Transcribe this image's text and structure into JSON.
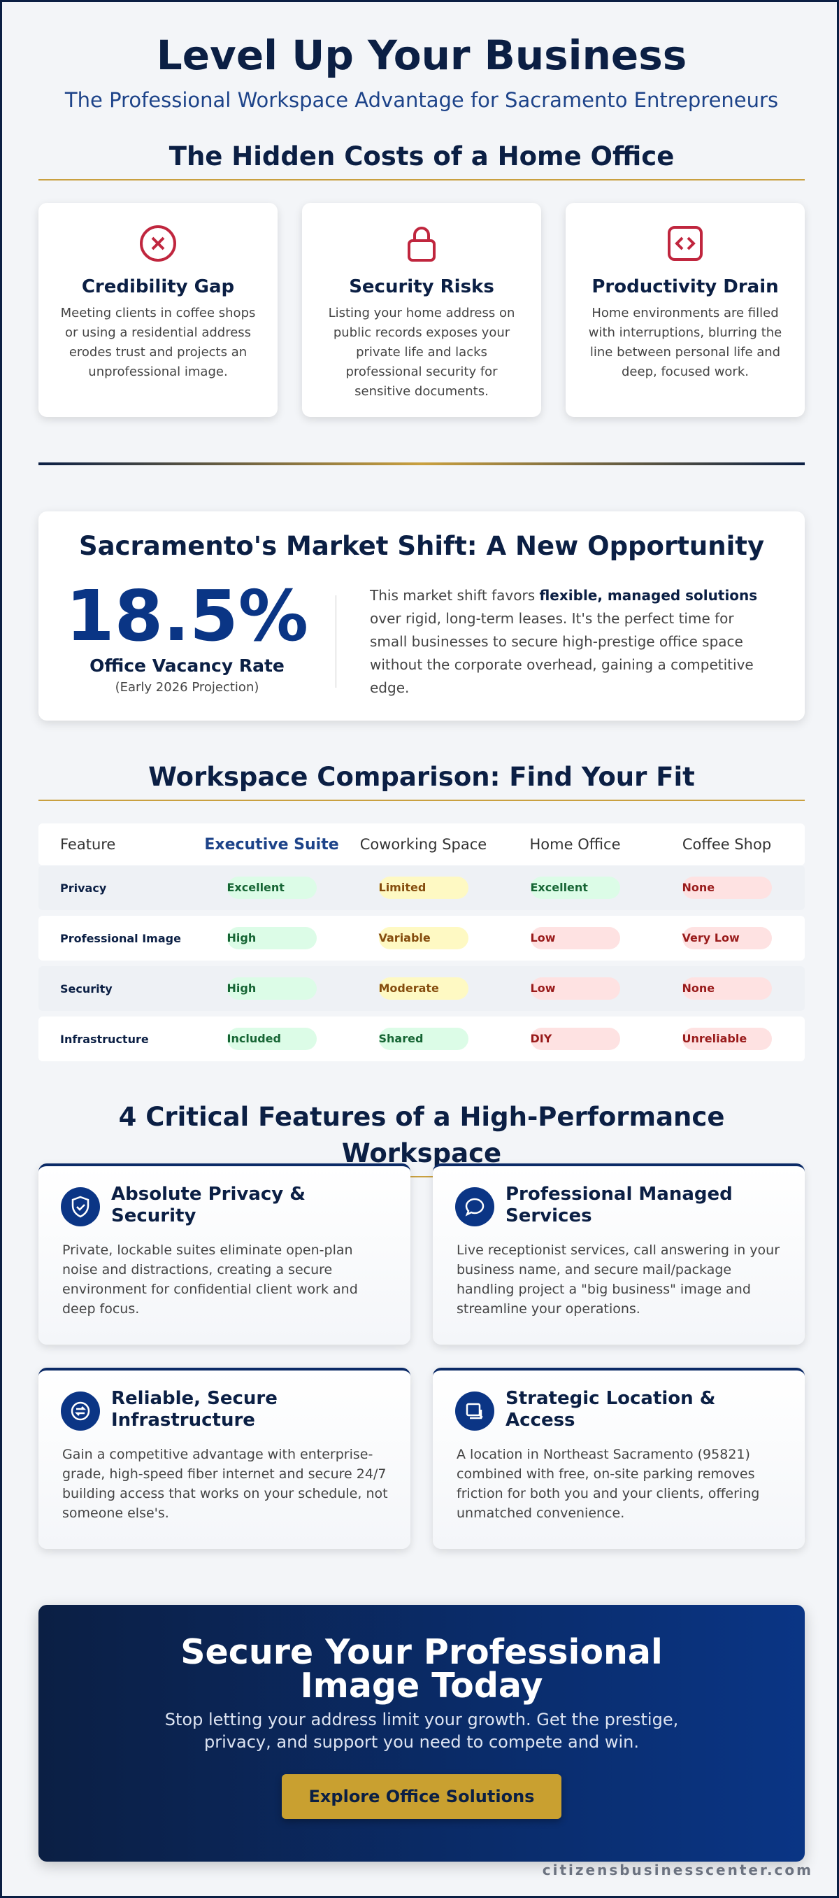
{
  "header": {
    "title": "Level Up Your Business",
    "subtitle": "The Professional Workspace Advantage for Sacramento Entrepreneurs"
  },
  "costs": {
    "heading": "The Hidden Costs of a Home Office",
    "cards": [
      {
        "title": "Credibility Gap",
        "text": "Meeting clients in coffee shops or using a residential address erodes trust and projects an unprofessional image."
      },
      {
        "title": "Security Risks",
        "text": "Listing your home address on public records exposes your private life and lacks professional security for sensitive documents."
      },
      {
        "title": "Productivity Drain",
        "text": "Home environments are filled with interruptions, blurring the line between personal life and deep, focused work."
      }
    ]
  },
  "market": {
    "heading": "Sacramento's Market Shift: A New Opportunity",
    "stat": "18.5%",
    "stat_label": "Office Vacancy Rate",
    "stat_note": "(Early 2026 Projection)",
    "text_before": "This market shift favors ",
    "text_bold": "flexible, managed solutions",
    "text_after": " over rigid, long-term leases. It's the perfect time for small businesses to secure high-prestige office space without the corporate overhead, gaining a competitive edge."
  },
  "comparison": {
    "heading": "Workspace Comparison: Find Your Fit",
    "columns": [
      "Feature",
      "Executive Suite",
      "Coworking Space",
      "Home Office",
      "Coffee Shop"
    ],
    "rows": [
      {
        "feature": "Privacy",
        "values": [
          "Excellent",
          "Limited",
          "Excellent",
          "None"
        ],
        "tones": [
          "good",
          "mid",
          "good",
          "bad"
        ]
      },
      {
        "feature": "Professional Image",
        "values": [
          "High",
          "Variable",
          "Low",
          "Very Low"
        ],
        "tones": [
          "good",
          "mid",
          "bad",
          "bad"
        ]
      },
      {
        "feature": "Security",
        "values": [
          "High",
          "Moderate",
          "Low",
          "None"
        ],
        "tones": [
          "good",
          "mid",
          "bad",
          "bad"
        ]
      },
      {
        "feature": "Infrastructure",
        "values": [
          "Included",
          "Shared",
          "DIY",
          "Unreliable"
        ],
        "tones": [
          "good",
          "good",
          "bad",
          "bad"
        ]
      }
    ]
  },
  "features": {
    "heading": "4 Critical Features of a High-Performance Workspace",
    "items": [
      {
        "title": "Absolute Privacy & Security",
        "text": "Private, lockable suites eliminate open-plan noise and distractions, creating a secure environment for confidential client work and deep focus."
      },
      {
        "title": "Professional Managed Services",
        "text": "Live receptionist services, call answering in your business name, and secure mail/package handling project a \"big business\" image and streamline your operations."
      },
      {
        "title": "Reliable, Secure Infrastructure",
        "text": "Gain a competitive advantage with enterprise-grade, high-speed fiber internet and secure 24/7 building access that works on your schedule, not someone else's."
      },
      {
        "title": "Strategic Location & Access",
        "text": "A location in Northeast Sacramento (95821) combined with free, on-site parking removes friction for both you and your clients, offering unmatched convenience."
      }
    ]
  },
  "cta": {
    "title": "Secure Your Professional Image Today",
    "text": "Stop letting your address limit your growth. Get the prestige, privacy, and support you need to compete and win.",
    "button": "Explore Office Solutions"
  },
  "footer": {
    "site": "citizensbusinesscenter.com"
  }
}
